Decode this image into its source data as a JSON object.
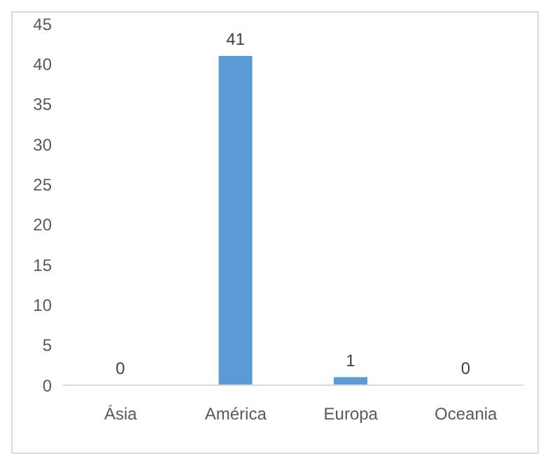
{
  "chart_data": {
    "type": "bar",
    "categories": [
      "Ásia",
      "América",
      "Europa",
      "Oceania"
    ],
    "values": [
      0,
      41,
      1,
      0
    ],
    "color": "#5b9bd5",
    "ylim": [
      0,
      45
    ],
    "yticks": [
      0,
      5,
      10,
      15,
      20,
      25,
      30,
      35,
      40,
      45
    ],
    "grid": false,
    "data_labels": true
  }
}
